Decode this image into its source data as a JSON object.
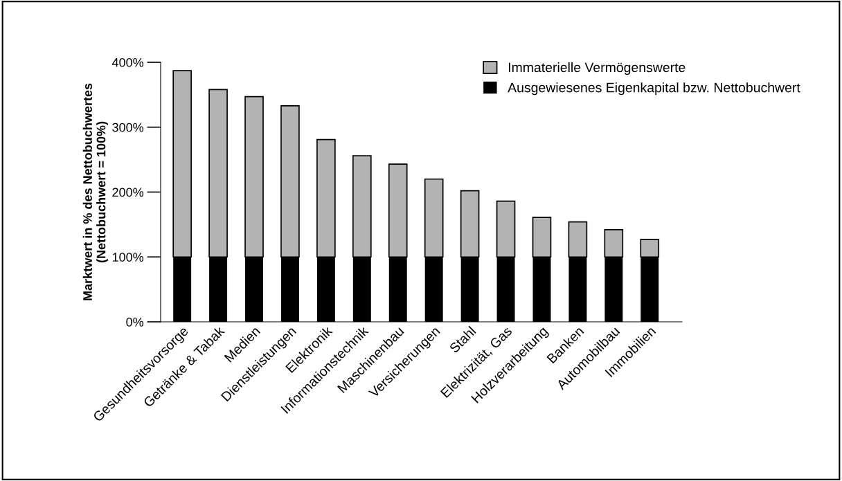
{
  "chart_data": {
    "type": "bar",
    "stacked": true,
    "ylabel": "Marktwert in % des Nettobuchwertes\n(Nettobuchwert = 100%)",
    "categories": [
      "Gesundheitsvorsorge",
      "Getränke & Tabak",
      "Medien",
      "Dienstleistungen",
      "Elektronik",
      "Informationstechnik",
      "Maschinenbau",
      "Versicherungen",
      "Stahl",
      "Elektrizität, Gas",
      "Holzverarbeitung",
      "Banken",
      "Automobilbau",
      "Immobilien"
    ],
    "series": [
      {
        "name": "Ausgewiesenes Eigenkapital bzw. Nettobuchwert",
        "color": "#000000",
        "values": [
          100,
          100,
          100,
          100,
          100,
          100,
          100,
          100,
          100,
          100,
          100,
          100,
          100,
          100
        ]
      },
      {
        "name": "Immaterielle Vermögenswerte",
        "color": "#b3b3b3",
        "values": [
          287,
          258,
          247,
          233,
          181,
          156,
          143,
          120,
          102,
          86,
          61,
          54,
          42,
          27
        ]
      }
    ],
    "ylim": [
      0,
      400
    ],
    "yticks": [
      {
        "value": 0,
        "label": "0%"
      },
      {
        "value": 100,
        "label": "100%"
      },
      {
        "value": 200,
        "label": "200%"
      },
      {
        "value": 300,
        "label": "300%"
      },
      {
        "value": 400,
        "label": "400%"
      }
    ],
    "grid": false,
    "legend": "top right"
  }
}
